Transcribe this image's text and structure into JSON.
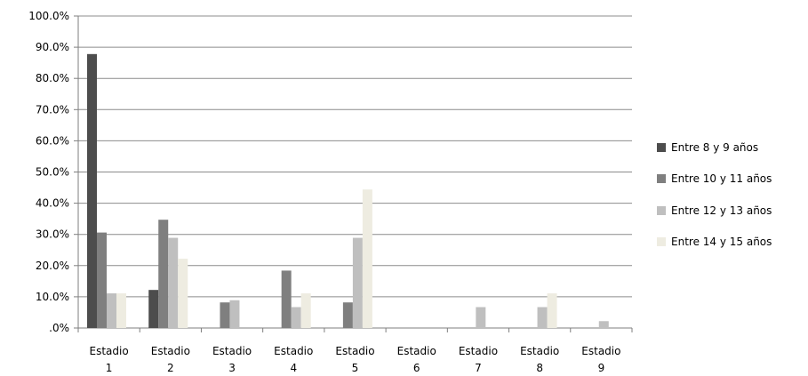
{
  "chart_data": {
    "type": "bar",
    "title": "",
    "xlabel": "",
    "ylabel": "",
    "ylim": [
      0,
      100
    ],
    "y_ticks": [
      ".0%",
      "10.0%",
      "20.0%",
      "30.0%",
      "40.0%",
      "50.0%",
      "60.0%",
      "70.0%",
      "80.0%",
      "90.0%",
      "100.0%"
    ],
    "categories": [
      {
        "line1": "Estadio",
        "line2": "1"
      },
      {
        "line1": "Estadio",
        "line2": "2"
      },
      {
        "line1": "Estadio",
        "line2": "3"
      },
      {
        "line1": "Estadio",
        "line2": "4"
      },
      {
        "line1": "Estadio",
        "line2": "5"
      },
      {
        "line1": "Estadio",
        "line2": "6"
      },
      {
        "line1": "Estadio",
        "line2": "7"
      },
      {
        "line1": "Estadio",
        "line2": "8"
      },
      {
        "line1": "Estadio",
        "line2": "9"
      }
    ],
    "series": [
      {
        "name": "Entre 8 y 9 años",
        "color": "#4d4d4d",
        "values": [
          87.8,
          12.2,
          0,
          0,
          0,
          0,
          0,
          0,
          0
        ]
      },
      {
        "name": "Entre 10 y 11 años",
        "color": "#7f7f7f",
        "values": [
          30.6,
          34.7,
          8.2,
          18.4,
          8.2,
          0,
          0,
          0,
          0
        ]
      },
      {
        "name": "Entre 12 y 13 años",
        "color": "#bfbfbf",
        "values": [
          11.1,
          28.9,
          8.9,
          6.7,
          28.9,
          0,
          6.7,
          6.7,
          2.2
        ]
      },
      {
        "name": "Entre 14 y 15 años",
        "color": "#eeece1",
        "values": [
          11.1,
          22.2,
          0,
          11.1,
          44.4,
          0,
          0,
          11.1,
          0
        ]
      }
    ],
    "grid": true,
    "legend_position": "right"
  }
}
